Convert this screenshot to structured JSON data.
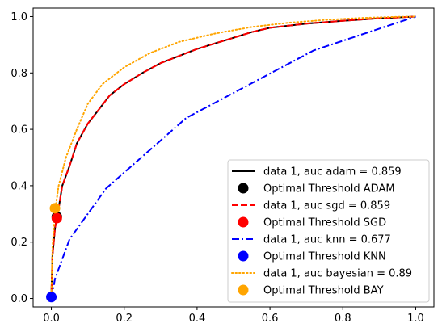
{
  "chart_data": {
    "type": "line",
    "title": "",
    "xlabel": "",
    "ylabel": "",
    "xlim": [
      -0.05,
      1.05
    ],
    "ylim": [
      -0.03,
      1.03
    ],
    "grid": false,
    "legend_position": "bottom-right",
    "x_ticks": [
      "0.0",
      "0.2",
      "0.4",
      "0.6",
      "0.8",
      "1.0"
    ],
    "y_ticks": [
      "0.0",
      "0.2",
      "0.4",
      "0.6",
      "0.8",
      "1.0"
    ],
    "series": [
      {
        "name": "data 1, auc adam = 0.859",
        "kind": "line",
        "color": "#000000",
        "dash": "solid",
        "x": [
          0.0,
          0.003,
          0.01,
          0.02,
          0.03,
          0.05,
          0.07,
          0.1,
          0.13,
          0.16,
          0.2,
          0.25,
          0.3,
          0.35,
          0.4,
          0.45,
          0.5,
          0.55,
          0.6,
          0.7,
          0.8,
          0.9,
          1.0
        ],
        "y": [
          0.0,
          0.15,
          0.25,
          0.32,
          0.4,
          0.47,
          0.55,
          0.62,
          0.67,
          0.72,
          0.76,
          0.8,
          0.835,
          0.86,
          0.885,
          0.905,
          0.925,
          0.945,
          0.96,
          0.975,
          0.985,
          0.994,
          1.0
        ]
      },
      {
        "name": "Optimal Threshold ADAM",
        "kind": "point",
        "color": "#000000",
        "x": [
          0.015
        ],
        "y": [
          0.29
        ]
      },
      {
        "name": "data 1, auc sgd = 0.859",
        "kind": "line",
        "color": "#ff0000",
        "dash": "dashed",
        "x": [
          0.0,
          0.003,
          0.01,
          0.02,
          0.03,
          0.05,
          0.07,
          0.1,
          0.13,
          0.16,
          0.2,
          0.25,
          0.3,
          0.35,
          0.4,
          0.45,
          0.5,
          0.55,
          0.6,
          0.7,
          0.8,
          0.9,
          1.0
        ],
        "y": [
          0.0,
          0.15,
          0.25,
          0.32,
          0.4,
          0.47,
          0.55,
          0.62,
          0.67,
          0.72,
          0.76,
          0.8,
          0.835,
          0.86,
          0.885,
          0.905,
          0.925,
          0.945,
          0.96,
          0.975,
          0.985,
          0.994,
          1.0
        ]
      },
      {
        "name": "Optimal Threshold SGD",
        "kind": "point",
        "color": "#ff0000",
        "x": [
          0.015
        ],
        "y": [
          0.285
        ]
      },
      {
        "name": "data 1, auc knn = 0.677",
        "kind": "line",
        "color": "#0000ff",
        "dash": "dashdot",
        "x": [
          0.0,
          0.01,
          0.05,
          0.15,
          0.37,
          0.72,
          1.0
        ],
        "y": [
          0.0,
          0.07,
          0.21,
          0.39,
          0.64,
          0.88,
          1.0
        ]
      },
      {
        "name": "Optimal Threshold KNN",
        "kind": "point",
        "color": "#0000ff",
        "x": [
          0.0
        ],
        "y": [
          0.005
        ]
      },
      {
        "name": "data 1, auc bayesian = 0.89",
        "kind": "line",
        "color": "#ffa500",
        "dash": "dotted",
        "x": [
          0.0,
          0.003,
          0.01,
          0.02,
          0.04,
          0.07,
          0.1,
          0.14,
          0.2,
          0.27,
          0.35,
          0.45,
          0.55,
          0.65,
          0.75,
          0.85,
          0.95,
          1.0
        ],
        "y": [
          0.0,
          0.18,
          0.31,
          0.4,
          0.5,
          0.6,
          0.69,
          0.76,
          0.82,
          0.87,
          0.91,
          0.94,
          0.963,
          0.978,
          0.988,
          0.995,
          0.999,
          1.0
        ]
      },
      {
        "name": "Optimal Threshold BAY",
        "kind": "point",
        "color": "#ffa500",
        "x": [
          0.01
        ],
        "y": [
          0.32
        ]
      }
    ]
  }
}
